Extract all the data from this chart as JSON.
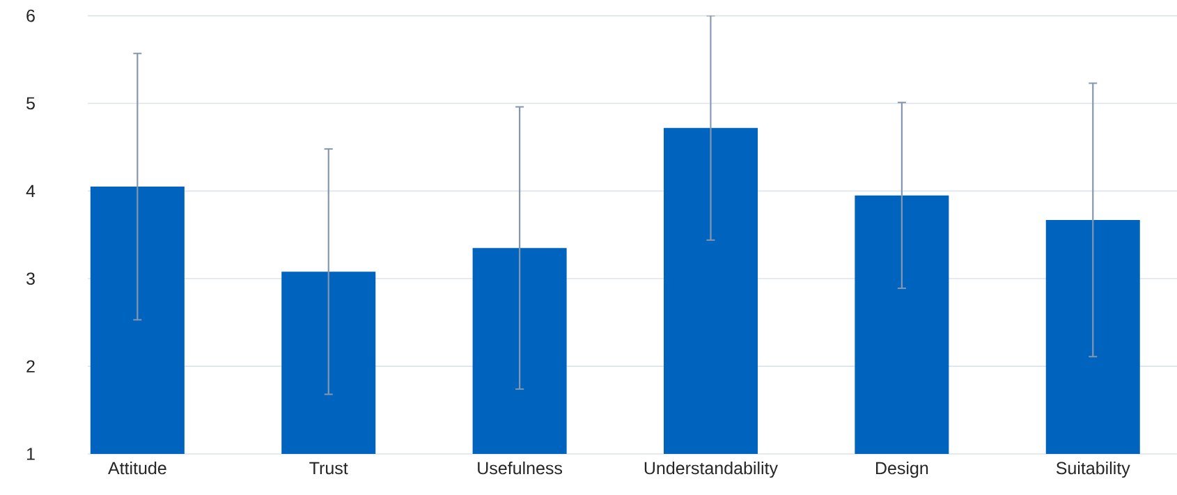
{
  "chart_data": {
    "type": "bar",
    "categories": [
      "Attitude",
      "Trust",
      "Usefulness",
      "Understandability",
      "Design",
      "Suitability"
    ],
    "values": [
      4.05,
      3.08,
      3.35,
      4.72,
      3.95,
      3.67
    ],
    "errors": [
      1.52,
      1.4,
      1.61,
      1.28,
      1.06,
      1.56
    ],
    "color": "#0063be",
    "ylim": [
      1,
      6
    ],
    "yticks": [
      1,
      2,
      3,
      4,
      5,
      6
    ],
    "grid": "y"
  }
}
